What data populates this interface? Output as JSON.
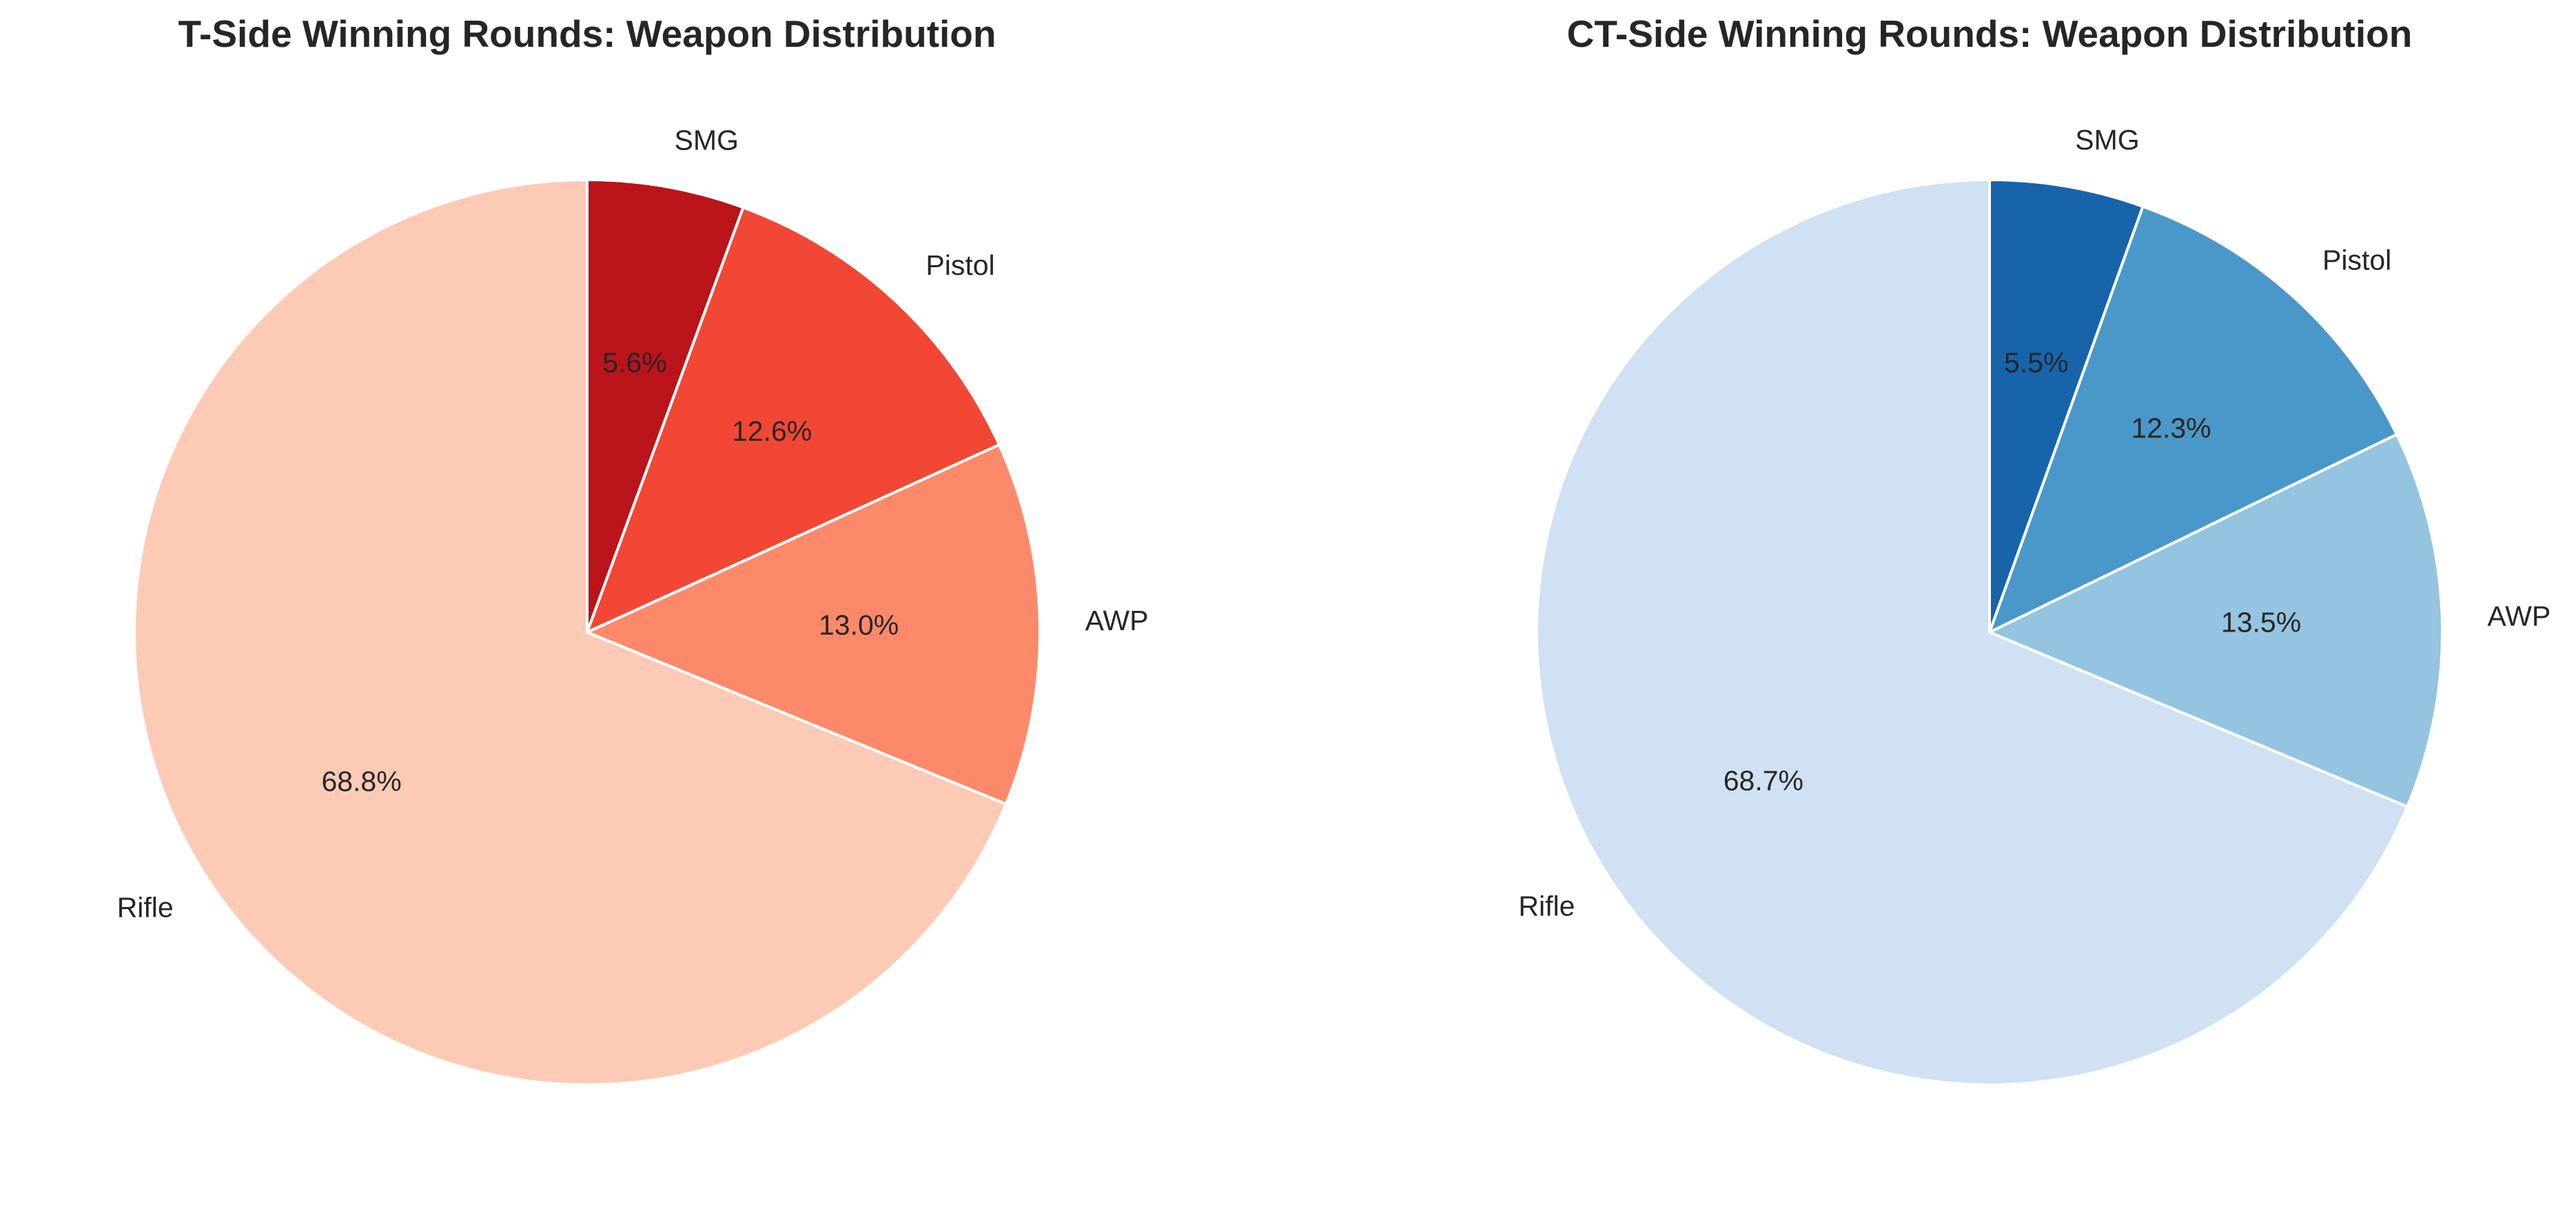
{
  "chart_data": [
    {
      "type": "pie",
      "title": "T-Side Winning Rounds: Weapon Distribution",
      "start_angle_deg": 90,
      "direction": "clockwise",
      "categories": [
        "SMG",
        "Pistol",
        "AWP",
        "Rifle"
      ],
      "values": [
        5.6,
        12.6,
        13.0,
        68.8
      ],
      "value_labels": [
        "5.6%",
        "12.6%",
        "13.0%",
        "68.8%"
      ],
      "colors": [
        "#bb141a",
        "#f24734",
        "#fc8a6a",
        "#fdcab5"
      ],
      "edge_color": "#ffffff"
    },
    {
      "type": "pie",
      "title": "CT-Side Winning Rounds: Weapon Distribution",
      "start_angle_deg": 90,
      "direction": "clockwise",
      "categories": [
        "SMG",
        "Pistol",
        "AWP",
        "Rifle"
      ],
      "values": [
        5.5,
        12.3,
        13.5,
        68.7
      ],
      "value_labels": [
        "5.5%",
        "12.3%",
        "13.5%",
        "68.7%"
      ],
      "colors": [
        "#1764ab",
        "#4a98c9",
        "#94c4df",
        "#cfe1f2"
      ],
      "edge_color": "#ffffff"
    }
  ]
}
